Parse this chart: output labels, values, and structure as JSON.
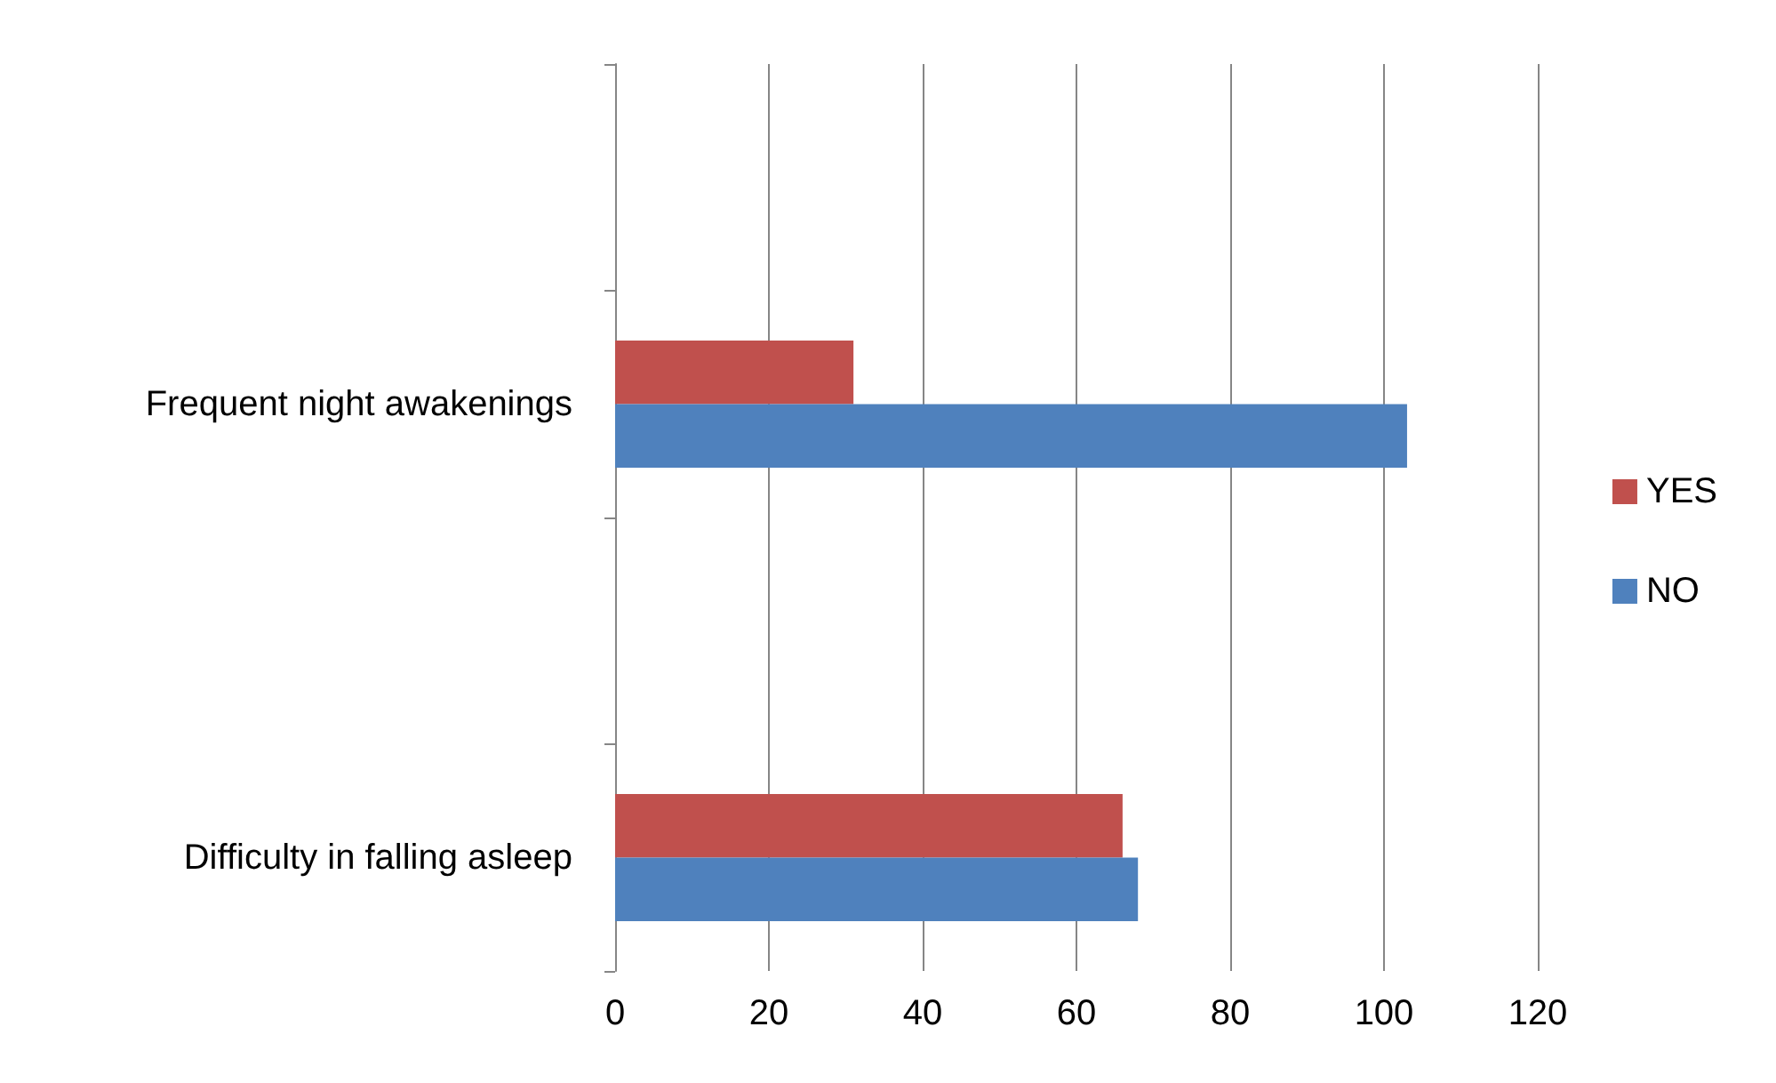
{
  "chart_data": {
    "type": "bar",
    "orientation": "horizontal",
    "categories": [
      null,
      "Frequent night awakenings",
      null,
      "Difficulty in falling asleep"
    ],
    "series": [
      {
        "name": "YES",
        "color": "#c0504d",
        "values": [
          null,
          31,
          null,
          66
        ]
      },
      {
        "name": "NO",
        "color": "#4f81bd",
        "values": [
          null,
          103,
          null,
          68
        ]
      }
    ],
    "xlim": [
      0,
      120
    ],
    "xticks": [
      0,
      20,
      40,
      60,
      80,
      100,
      120
    ],
    "grid": "x",
    "legend": "right"
  }
}
